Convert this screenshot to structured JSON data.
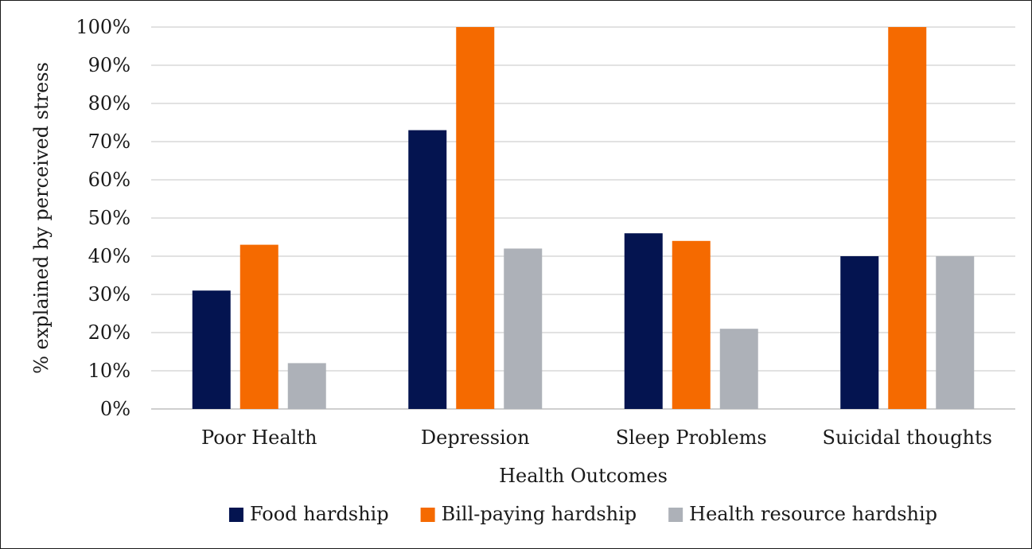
{
  "chart_data": {
    "type": "bar",
    "title": "",
    "xlabel": "Health Outcomes",
    "ylabel": "% explained by perceived stress",
    "categories": [
      "Poor Health",
      "Depression",
      "Sleep Problems",
      "Suicidal thoughts"
    ],
    "series": [
      {
        "name": "Food hardship",
        "color": "#041450",
        "values": [
          31,
          73,
          46,
          40
        ]
      },
      {
        "name": "Bill-paying hardship",
        "color": "#f56a00",
        "values": [
          43,
          100,
          44,
          100
        ]
      },
      {
        "name": "Health resource hardship",
        "color": "#adb1b8",
        "values": [
          12,
          42,
          21,
          40
        ]
      }
    ],
    "ylim": [
      0,
      100
    ],
    "yticks": [
      "0%",
      "10%",
      "20%",
      "30%",
      "40%",
      "50%",
      "60%",
      "70%",
      "80%",
      "90%",
      "100%"
    ],
    "grid": true,
    "legend_position": "bottom"
  }
}
